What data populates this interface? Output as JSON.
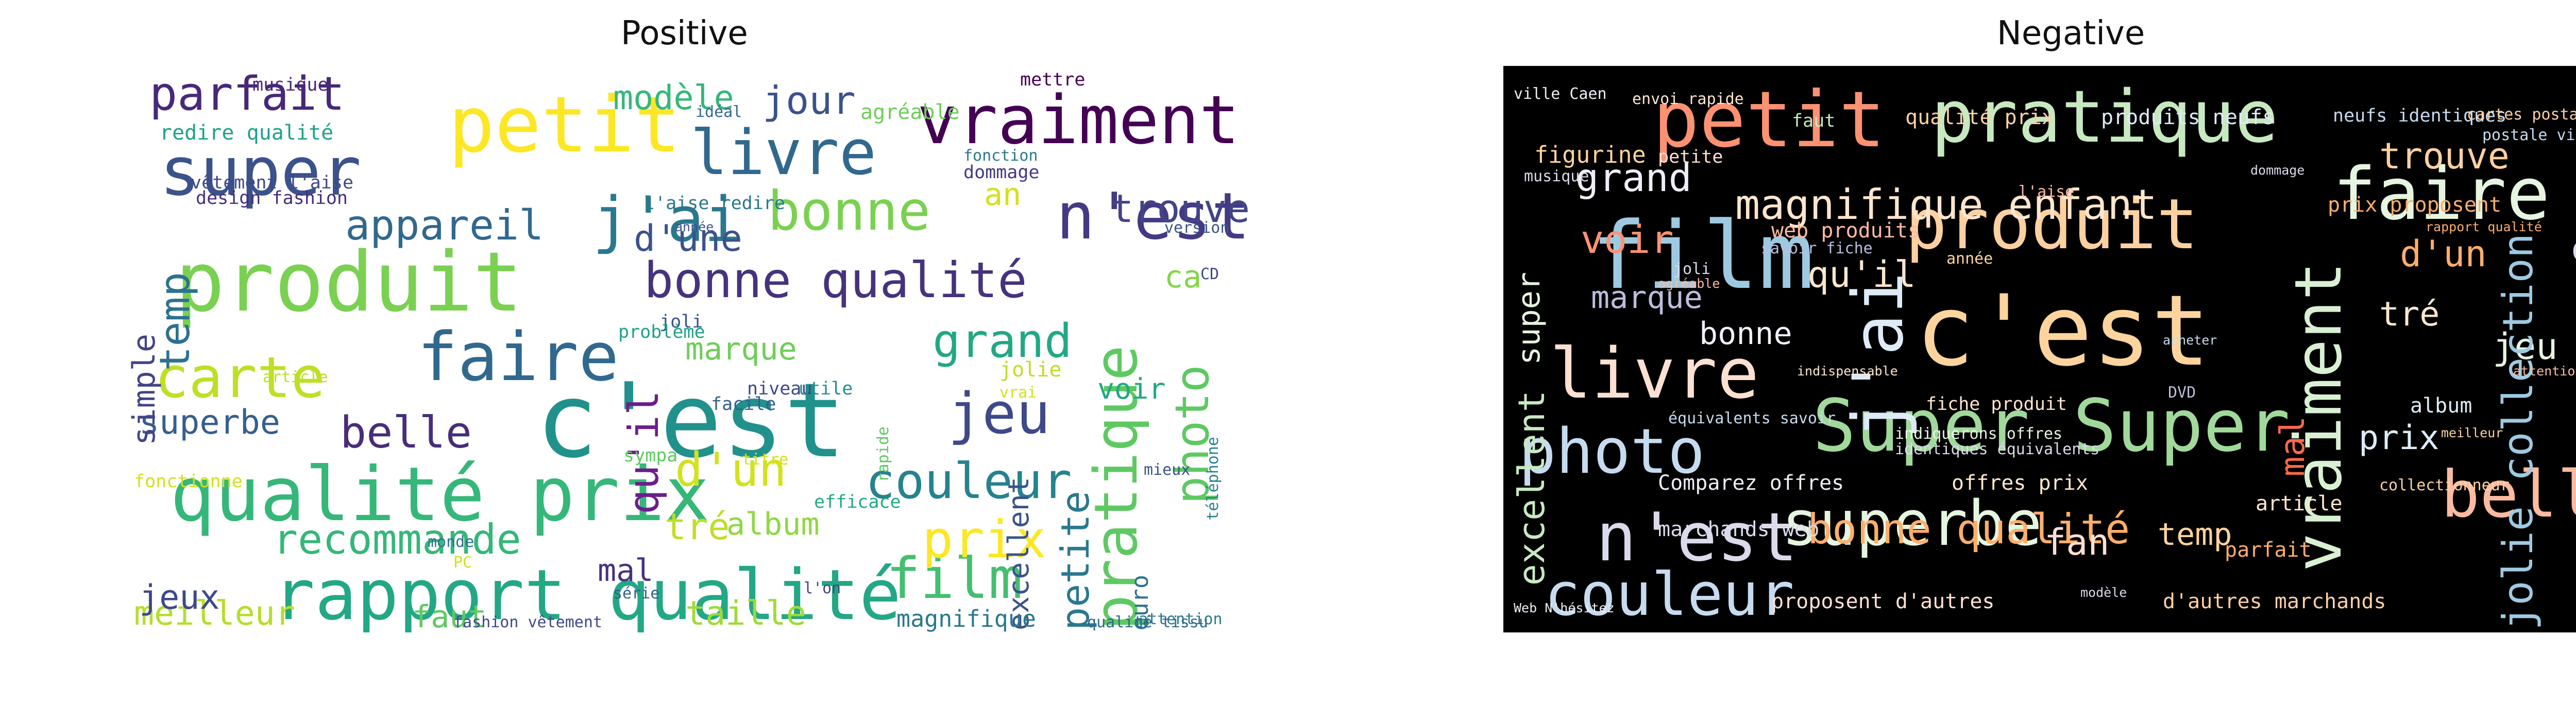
{
  "panels": [
    {
      "title": "Positive",
      "background": "#ffffff",
      "words": [
        {
          "text": "c'est",
          "color": "#21918c"
        },
        {
          "text": "produit",
          "color": "#7ad151"
        },
        {
          "text": "qualité prix",
          "color": "#35b779"
        },
        {
          "text": "rapport qualité",
          "color": "#22a884"
        },
        {
          "text": "petit",
          "color": "#fde725"
        },
        {
          "text": "vraiment",
          "color": "#440154"
        },
        {
          "text": "pratique",
          "color": "#5ec962"
        },
        {
          "text": "super",
          "color": "#3b528b"
        },
        {
          "text": "faire",
          "color": "#31688e"
        },
        {
          "text": "j'ai",
          "color": "#2a788e"
        },
        {
          "text": "n'est",
          "color": "#443983"
        },
        {
          "text": "livre",
          "color": "#31688e"
        },
        {
          "text": "bonne qualité",
          "color": "#46327e"
        },
        {
          "text": "carte",
          "color": "#bddf26"
        },
        {
          "text": "parfait",
          "color": "#482878"
        },
        {
          "text": "bonne",
          "color": "#7ad151"
        },
        {
          "text": "film",
          "color": "#44bf70"
        },
        {
          "text": "couleur",
          "color": "#26828e"
        },
        {
          "text": "photo",
          "color": "#5ec962"
        },
        {
          "text": "jeu",
          "color": "#3e4989"
        },
        {
          "text": "belle",
          "color": "#472d7b"
        },
        {
          "text": "prix",
          "color": "#fde725"
        },
        {
          "text": "d'un",
          "color": "#d2e21b"
        },
        {
          "text": "grand",
          "color": "#22a884"
        },
        {
          "text": "recommande",
          "color": "#35b779"
        },
        {
          "text": "appareil",
          "color": "#31688e"
        },
        {
          "text": "trouve",
          "color": "#414487"
        },
        {
          "text": "jour",
          "color": "#3b528b"
        },
        {
          "text": "superbe",
          "color": "#355f8d"
        },
        {
          "text": "qu'il",
          "color": "#6a1f8a"
        },
        {
          "text": "temp",
          "color": "#2c728e"
        },
        {
          "text": "petite",
          "color": "#2a788e"
        },
        {
          "text": "meilleur",
          "color": "#b5de2b"
        },
        {
          "text": "taille",
          "color": "#a0da39"
        },
        {
          "text": "d'une",
          "color": "#3b528b"
        },
        {
          "text": "modèle",
          "color": "#35b779"
        },
        {
          "text": "simple",
          "color": "#414487"
        },
        {
          "text": "marque",
          "color": "#6ece58"
        },
        {
          "text": "album",
          "color": "#90d743"
        },
        {
          "text": "tré",
          "color": "#bddf26"
        },
        {
          "text": "excellent",
          "color": "#3b528b"
        },
        {
          "text": "jeux",
          "color": "#3e4989"
        },
        {
          "text": "faut",
          "color": "#5ec962"
        },
        {
          "text": "mal",
          "color": "#46327e"
        },
        {
          "text": "an",
          "color": "#d2e21b"
        },
        {
          "text": "ca",
          "color": "#86d549"
        },
        {
          "text": "voir",
          "color": "#22a884"
        },
        {
          "text": "magnifique",
          "color": "#2a788e"
        },
        {
          "text": "euro",
          "color": "#2c728e"
        },
        {
          "text": "redire qualité",
          "color": "#1fa188"
        },
        {
          "text": "vêtement l'aise",
          "color": "#3e4989"
        },
        {
          "text": "l'aise redire",
          "color": "#2a788e"
        },
        {
          "text": "dommage",
          "color": "#443983"
        },
        {
          "text": "design fashion",
          "color": "#472d7b"
        },
        {
          "text": "agréable",
          "color": "#6ece58"
        },
        {
          "text": "mettre",
          "color": "#440154"
        },
        {
          "text": "musique",
          "color": "#482878"
        },
        {
          "text": "idéal",
          "color": "#31688e"
        },
        {
          "text": "fonction",
          "color": "#2a788e"
        },
        {
          "text": "année",
          "color": "#3b528b"
        },
        {
          "text": "jolie",
          "color": "#bddf26"
        },
        {
          "text": "joli",
          "color": "#3b528b"
        },
        {
          "text": "problème",
          "color": "#1fa188"
        },
        {
          "text": "niveau",
          "color": "#3e4989"
        },
        {
          "text": "utile",
          "color": "#21918c"
        },
        {
          "text": "facile",
          "color": "#355f8d"
        },
        {
          "text": "efficace",
          "color": "#22a884"
        },
        {
          "text": "sympa",
          "color": "#5ec962"
        },
        {
          "text": "titre",
          "color": "#d2e21b"
        },
        {
          "text": "fonctionne",
          "color": "#d2e21b"
        },
        {
          "text": "monde",
          "color": "#2c728e"
        },
        {
          "text": "PC",
          "color": "#d2e21b"
        },
        {
          "text": "série",
          "color": "#355f8d"
        },
        {
          "text": "l'on",
          "color": "#414487"
        },
        {
          "text": "fashion vêtement",
          "color": "#3e4989"
        },
        {
          "text": "mieux",
          "color": "#3b528b"
        },
        {
          "text": "téléphone",
          "color": "#26828e"
        },
        {
          "text": "attention",
          "color": "#2a788e"
        },
        {
          "text": "qualité tissu",
          "color": "#31688e"
        },
        {
          "text": "rapide",
          "color": "#5ec962"
        },
        {
          "text": "article",
          "color": "#bddf26"
        },
        {
          "text": "version",
          "color": "#3b528b"
        },
        {
          "text": "vrai",
          "color": "#d2e21b"
        },
        {
          "text": "CD",
          "color": "#3e4989"
        }
      ]
    },
    {
      "title": "Negative",
      "background": "#000000",
      "words": [
        {
          "text": "c'est",
          "color": "#fdd49e"
        },
        {
          "text": "film",
          "color": "#9ecae1"
        },
        {
          "text": "petit",
          "color": "#fc9272"
        },
        {
          "text": "pratique",
          "color": "#c7e9c0"
        },
        {
          "text": "produit",
          "color": "#fdd0a2"
        },
        {
          "text": "faire",
          "color": "#e5f5e0"
        },
        {
          "text": "vraiment",
          "color": "#d9f0d3"
        },
        {
          "text": "photo",
          "color": "#c6dbef"
        },
        {
          "text": "Super Super",
          "color": "#a1d99b"
        },
        {
          "text": "livre",
          "color": "#fee0d2"
        },
        {
          "text": "j'ai",
          "color": "#deebf7"
        },
        {
          "text": "n'est",
          "color": "#dadaeb"
        },
        {
          "text": "couleur",
          "color": "#c6dbef"
        },
        {
          "text": "superbe",
          "color": "#e5f5e0"
        },
        {
          "text": "belle",
          "color": "#fcbba1"
        },
        {
          "text": "magnifique enfant",
          "color": "#fee6ce"
        },
        {
          "text": "bonne qualité",
          "color": "#fdae6b"
        },
        {
          "text": "grand",
          "color": "#efedf5"
        },
        {
          "text": "voir",
          "color": "#fc9272"
        },
        {
          "text": "qu'il",
          "color": "#fee6ce"
        },
        {
          "text": "d'un",
          "color": "#fdae6b"
        },
        {
          "text": "trouve",
          "color": "#fdd0a2"
        },
        {
          "text": "jeu",
          "color": "#e5f5e0"
        },
        {
          "text": "excellent",
          "color": "#c7e9c0"
        },
        {
          "text": "jolie collection",
          "color": "#9ecae1"
        },
        {
          "text": "fan",
          "color": "#fee0d2"
        },
        {
          "text": "temp",
          "color": "#fdd49e"
        },
        {
          "text": "prix",
          "color": "#deebf7"
        },
        {
          "text": "mal",
          "color": "#fb6a4a"
        },
        {
          "text": "tré",
          "color": "#fee6ce"
        },
        {
          "text": "marque",
          "color": "#bcbddc"
        },
        {
          "text": "bonne",
          "color": "#f2f0f7"
        },
        {
          "text": "ca",
          "color": "#dadaeb"
        },
        {
          "text": "super",
          "color": "#e5f5e0"
        },
        {
          "text": "qualité prix",
          "color": "#fdd0a2"
        },
        {
          "text": "produits neufs",
          "color": "#deebf7"
        },
        {
          "text": "neufs identiques",
          "color": "#c6dbef"
        },
        {
          "text": "prix proposent",
          "color": "#fdae6b"
        },
        {
          "text": "offres prix",
          "color": "#fee6ce"
        },
        {
          "text": "Comparez offres",
          "color": "#efedf5"
        },
        {
          "text": "marchands web",
          "color": "#dadaeb"
        },
        {
          "text": "proposent d'autres",
          "color": "#fee0d2"
        },
        {
          "text": "d'autres marchands",
          "color": "#fdd0a2"
        },
        {
          "text": "figurine",
          "color": "#fdd49e"
        },
        {
          "text": "web produits",
          "color": "#fcbba1"
        },
        {
          "text": "équivalents savoir",
          "color": "#c6dbef"
        },
        {
          "text": "identiques équivalents",
          "color": "#dadaeb"
        },
        {
          "text": "fiche produit",
          "color": "#fee6ce"
        },
        {
          "text": "indiquerons offres",
          "color": "#e5f5e0"
        },
        {
          "text": "article",
          "color": "#fee6ce"
        },
        {
          "text": "album",
          "color": "#deebf7"
        },
        {
          "text": "parfait",
          "color": "#fdae6b"
        },
        {
          "text": "année",
          "color": "#fdd49e"
        },
        {
          "text": "faut",
          "color": "#c7e9c0"
        },
        {
          "text": "petite",
          "color": "#fee0d2"
        },
        {
          "text": "musique",
          "color": "#dadaeb"
        },
        {
          "text": "savoir fiche",
          "color": "#bcbddc"
        },
        {
          "text": "l'aise",
          "color": "#fcbba1"
        },
        {
          "text": "cartes postale",
          "color": "#fdd0a2"
        },
        {
          "text": "postale ville",
          "color": "#c6dbef"
        },
        {
          "text": "ville Caen",
          "color": "#efedf5"
        },
        {
          "text": "envoi rapide",
          "color": "#fee6ce"
        },
        {
          "text": "DVD",
          "color": "#bcbddc"
        },
        {
          "text": "rapport qualité",
          "color": "#fdae6b"
        },
        {
          "text": "joli",
          "color": "#dadaeb"
        },
        {
          "text": "agréable",
          "color": "#fcbba1"
        },
        {
          "text": "collectionneur",
          "color": "#fdd0a2"
        },
        {
          "text": "meilleur",
          "color": "#fdd49e"
        },
        {
          "text": "attention",
          "color": "#fcbba1"
        },
        {
          "text": "dommage",
          "color": "#dadaeb"
        },
        {
          "text": "acheter",
          "color": "#c6dbef"
        },
        {
          "text": "indispensable",
          "color": "#fee6ce"
        },
        {
          "text": "Web N'hésitez",
          "color": "#efedf5"
        },
        {
          "text": "modèle",
          "color": "#dadaeb"
        }
      ]
    }
  ]
}
